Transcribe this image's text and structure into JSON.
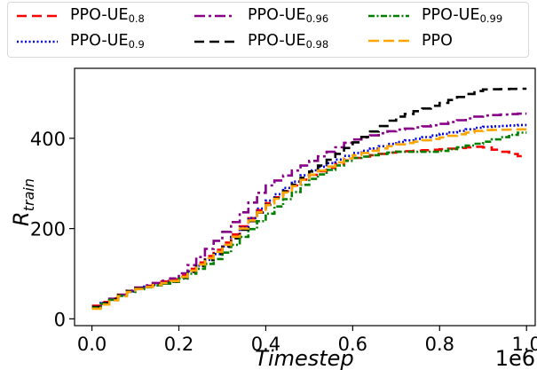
{
  "chart_data": {
    "type": "line",
    "title": "",
    "xlabel": "Timestep",
    "ylabel": "R",
    "ylabel_subscript": "train",
    "x_offset_label": "1e6",
    "xlim": [
      -0.04,
      1.02
    ],
    "ylim": [
      -15,
      555
    ],
    "x_ticks": [
      0.0,
      0.2,
      0.4,
      0.6,
      0.8,
      1.0
    ],
    "x_tick_labels": [
      "0.0",
      "0.2",
      "0.4",
      "0.6",
      "0.8",
      "1.0"
    ],
    "y_ticks": [
      0,
      200,
      400
    ],
    "y_tick_labels": [
      "0",
      "200",
      "400"
    ],
    "grid": false,
    "legend_position": "top",
    "legend_columns": 3,
    "step_plot": true,
    "series": [
      {
        "name_base": "PPO-UE",
        "name_sub": "0.8",
        "color": "#ff0000",
        "dash": "11,6",
        "x": [
          0.0,
          0.1,
          0.2,
          0.3,
          0.4,
          0.5,
          0.6,
          0.7,
          0.8,
          0.9,
          1.0
        ],
        "y": [
          25,
          66,
          90,
          160,
          250,
          315,
          355,
          370,
          375,
          382,
          358
        ]
      },
      {
        "name_base": "PPO-UE",
        "name_sub": "0.9",
        "color": "#0000dd",
        "dash": "2,2.5",
        "x": [
          0.0,
          0.1,
          0.2,
          0.3,
          0.4,
          0.5,
          0.6,
          0.7,
          0.8,
          0.9,
          1.0
        ],
        "y": [
          22,
          65,
          86,
          150,
          255,
          325,
          365,
          390,
          408,
          425,
          430
        ]
      },
      {
        "name_base": "PPO-UE",
        "name_sub": "0.96",
        "color": "#880088",
        "dash": "12,4,3,4",
        "x": [
          0.0,
          0.1,
          0.2,
          0.3,
          0.4,
          0.5,
          0.6,
          0.7,
          0.8,
          0.9,
          1.0
        ],
        "y": [
          22,
          67,
          92,
          182,
          290,
          345,
          395,
          418,
          430,
          450,
          455
        ]
      },
      {
        "name_base": "PPO-UE",
        "name_sub": "0.98",
        "color": "#000000",
        "dash": "11,6",
        "x": [
          0.0,
          0.1,
          0.2,
          0.3,
          0.4,
          0.5,
          0.6,
          0.7,
          0.8,
          0.9,
          1.0
        ],
        "y": [
          22,
          66,
          84,
          150,
          245,
          320,
          385,
          445,
          475,
          508,
          510
        ]
      },
      {
        "name_base": "PPO-UE",
        "name_sub": "0.99",
        "color": "#008000",
        "dash": "7,2.5,2,2.5",
        "x": [
          0.0,
          0.1,
          0.2,
          0.3,
          0.4,
          0.5,
          0.6,
          0.7,
          0.8,
          0.9,
          1.0
        ],
        "y": [
          20,
          64,
          84,
          138,
          225,
          305,
          355,
          370,
          370,
          390,
          415
        ]
      },
      {
        "name_base": "PPO",
        "name_sub": "",
        "color": "#ffa500",
        "dash": "12,5",
        "x": [
          0.0,
          0.1,
          0.2,
          0.3,
          0.4,
          0.5,
          0.6,
          0.7,
          0.8,
          0.9,
          1.0
        ],
        "y": [
          18,
          64,
          86,
          155,
          245,
          315,
          360,
          385,
          400,
          418,
          420
        ]
      }
    ]
  }
}
